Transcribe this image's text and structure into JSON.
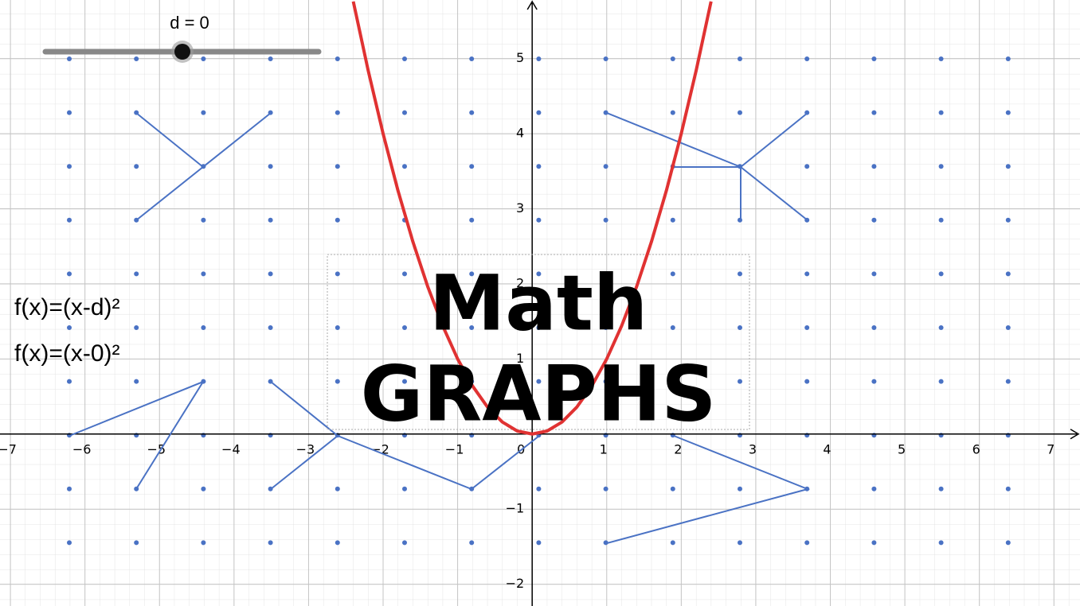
{
  "chart_data": {
    "type": "line",
    "title": "Math",
    "subtitle": "GRAPHS",
    "slider_label": "d = 0",
    "annotations": [
      "f(x)=(x-d)²",
      "f(x)=(x-0)²"
    ],
    "x": [
      -2.4,
      -2.2,
      -2,
      -1.8,
      -1.6,
      -1.4,
      -1.2,
      -1,
      -0.8,
      -0.6,
      -0.4,
      -0.2,
      0,
      0.2,
      0.4,
      0.6,
      0.8,
      1,
      1.2,
      1.4,
      1.6,
      1.8,
      2,
      2.2,
      2.4
    ],
    "series": [
      {
        "name": "f",
        "color": "#e03232",
        "values": [
          5.76,
          4.84,
          4,
          3.24,
          2.56,
          1.96,
          1.44,
          1,
          0.64,
          0.36,
          0.16,
          0.04,
          0,
          0.04,
          0.16,
          0.36,
          0.64,
          1,
          1.44,
          1.96,
          2.56,
          3.24,
          4,
          4.84,
          5.76
        ]
      }
    ],
    "xlim": [
      -7.14,
      7.35
    ],
    "ylim": [
      -2.29,
      5.78
    ],
    "xticks": [
      {
        "value": -7,
        "label": "−7"
      },
      {
        "value": -6,
        "label": "−6"
      },
      {
        "value": -5,
        "label": "−5"
      },
      {
        "value": -4,
        "label": "−4"
      },
      {
        "value": -3,
        "label": "−3"
      },
      {
        "value": -2,
        "label": "−2"
      },
      {
        "value": -1,
        "label": "−1"
      },
      0,
      1,
      2,
      3,
      4,
      5,
      6,
      7
    ],
    "yticks": [
      {
        "value": -2,
        "label": "−2"
      },
      {
        "value": -1,
        "label": "−1"
      },
      1,
      2,
      3,
      4,
      5
    ],
    "grid": true
  }
}
